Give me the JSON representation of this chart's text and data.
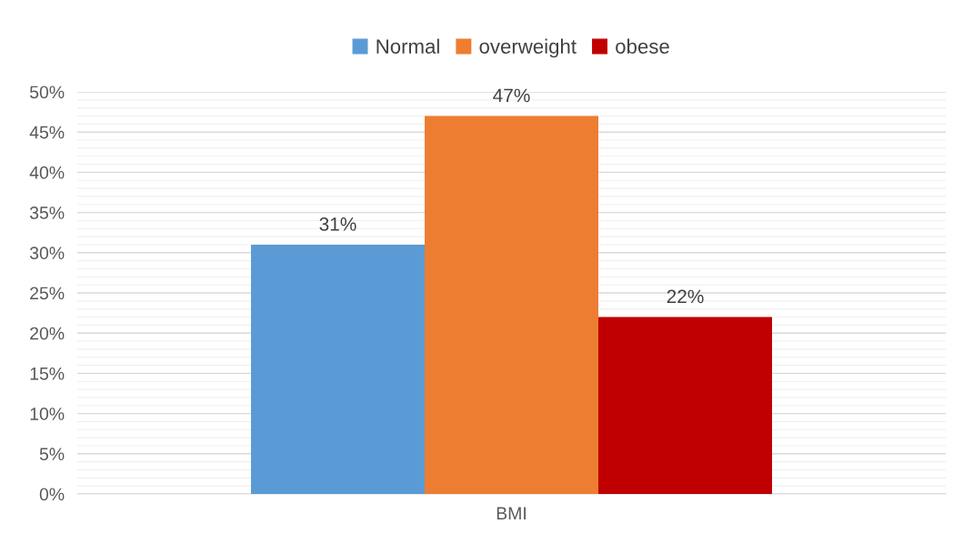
{
  "chart_data": {
    "type": "bar",
    "categories": [
      "BMI"
    ],
    "series": [
      {
        "name": "Normal",
        "color": "#5b9bd5",
        "values": [
          31
        ],
        "value_labels": [
          "31%"
        ]
      },
      {
        "name": "overweight",
        "color": "#ed7d31",
        "values": [
          47
        ],
        "value_labels": [
          "47%"
        ]
      },
      {
        "name": "obese",
        "color": "#c00000",
        "values": [
          22
        ],
        "value_labels": [
          "22%"
        ]
      }
    ],
    "ylim": [
      0,
      50
    ],
    "yticks": [
      {
        "value": 0,
        "label": "0%"
      },
      {
        "value": 5,
        "label": "5%"
      },
      {
        "value": 10,
        "label": "10%"
      },
      {
        "value": 15,
        "label": "15%"
      },
      {
        "value": 20,
        "label": "20%"
      },
      {
        "value": 25,
        "label": "25%"
      },
      {
        "value": 30,
        "label": "30%"
      },
      {
        "value": 35,
        "label": "35%"
      },
      {
        "value": 40,
        "label": "40%"
      },
      {
        "value": 45,
        "label": "45%"
      },
      {
        "value": 50,
        "label": "50%"
      }
    ],
    "grid": "y",
    "legend": "top"
  }
}
